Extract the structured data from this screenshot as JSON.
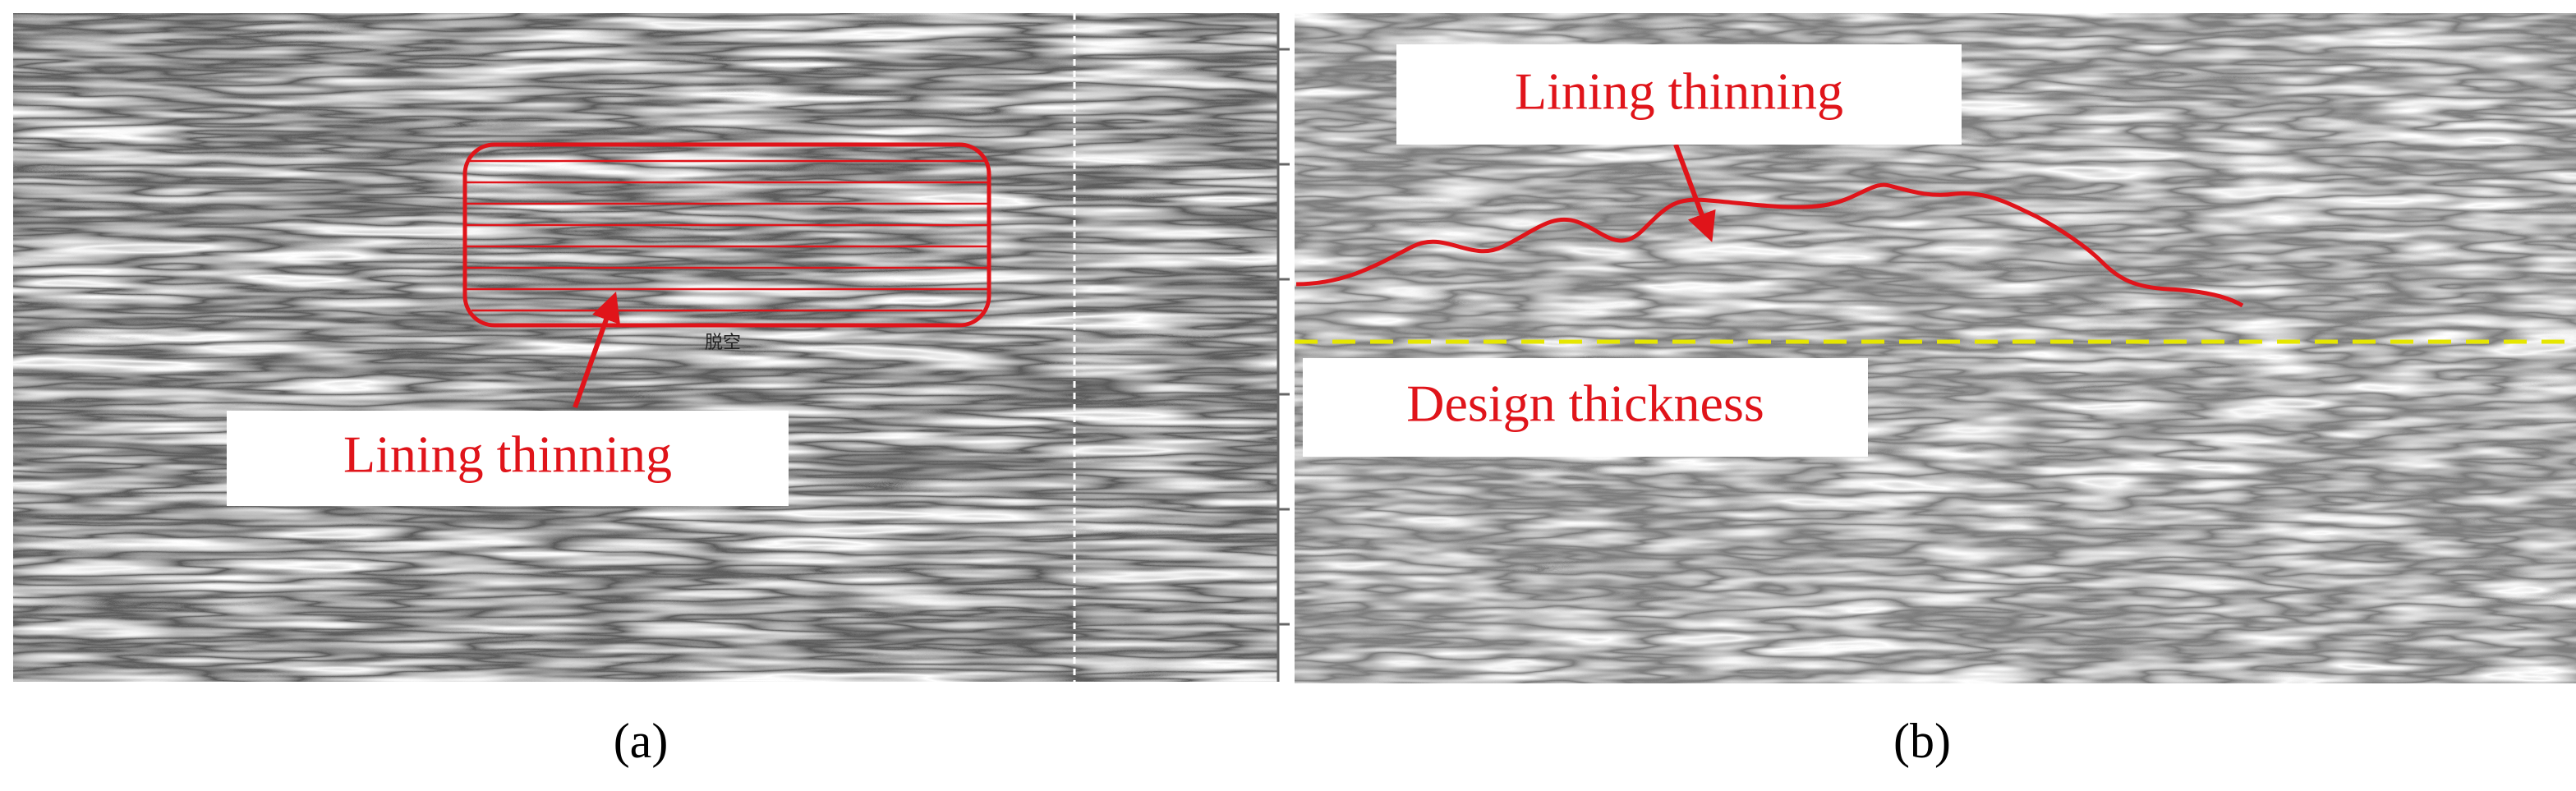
{
  "panels": [
    {
      "caption": "(a)",
      "annotation": "Lining thinning",
      "mark": "脱空"
    },
    {
      "caption": "(b)",
      "annotation": "Lining thinning",
      "reference": "Design thickness"
    }
  ]
}
